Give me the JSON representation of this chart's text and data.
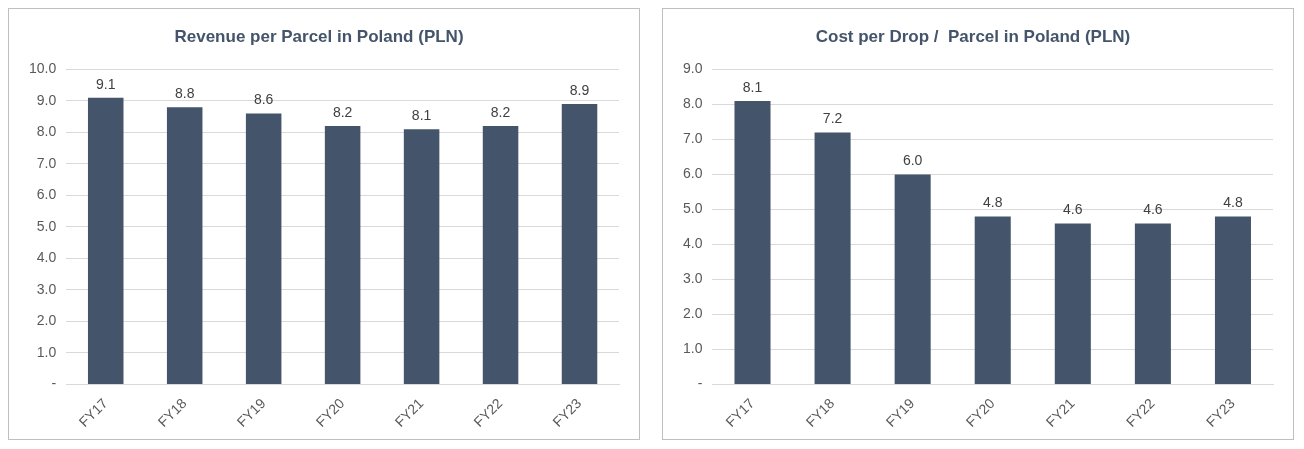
{
  "chart_data": [
    {
      "type": "bar",
      "title": "Revenue per Parcel in Poland (PLN)",
      "categories": [
        "FY17",
        "FY18",
        "FY19",
        "FY20",
        "FY21",
        "FY22",
        "FY23"
      ],
      "values": [
        9.1,
        8.8,
        8.6,
        8.2,
        8.1,
        8.2,
        8.9
      ],
      "value_labels": [
        "9.1",
        "8.8",
        "8.6",
        "8.2",
        "8.1",
        "8.2",
        "8.9"
      ],
      "color": "#44546a",
      "ylim": [
        0,
        10
      ],
      "yticks": [
        {
          "value": 0,
          "label": "-"
        },
        {
          "value": 1,
          "label": "1.0"
        },
        {
          "value": 2,
          "label": "2.0"
        },
        {
          "value": 3,
          "label": "3.0"
        },
        {
          "value": 4,
          "label": "4.0"
        },
        {
          "value": 5,
          "label": "5.0"
        },
        {
          "value": 6,
          "label": "6.0"
        },
        {
          "value": 7,
          "label": "7.0"
        },
        {
          "value": 8,
          "label": "8.0"
        },
        {
          "value": 9,
          "label": "9.0"
        },
        {
          "value": 10,
          "label": "10.0"
        }
      ],
      "grid": "y",
      "legend": false
    },
    {
      "type": "bar",
      "title": "Cost per Drop /  Parcel in Poland (PLN)",
      "categories": [
        "FY17",
        "FY18",
        "FY19",
        "FY20",
        "FY21",
        "FY22",
        "FY23"
      ],
      "values": [
        8.1,
        7.2,
        6.0,
        4.8,
        4.6,
        4.6,
        4.8
      ],
      "value_labels": [
        "8.1",
        "7.2",
        "6.0",
        "4.8",
        "4.6",
        "4.6",
        "4.8"
      ],
      "color": "#44546a",
      "ylim": [
        0,
        9
      ],
      "yticks": [
        {
          "value": 0,
          "label": "-"
        },
        {
          "value": 1,
          "label": "1.0"
        },
        {
          "value": 2,
          "label": "2.0"
        },
        {
          "value": 3,
          "label": "3.0"
        },
        {
          "value": 4,
          "label": "4.0"
        },
        {
          "value": 5,
          "label": "5.0"
        },
        {
          "value": 6,
          "label": "6.0"
        },
        {
          "value": 7,
          "label": "7.0"
        },
        {
          "value": 8,
          "label": "8.0"
        },
        {
          "value": 9,
          "label": "9.0"
        }
      ],
      "grid": "y",
      "legend": false
    }
  ]
}
